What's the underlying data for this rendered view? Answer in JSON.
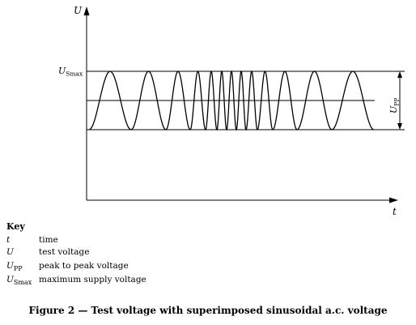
{
  "axes": {
    "y_label": "U",
    "x_label": "t",
    "level_label_main": "U",
    "level_label_sub": "Smax",
    "dimension_label_main": "U",
    "dimension_label_sub": "PP"
  },
  "key": {
    "title": "Key",
    "items": [
      {
        "symbol": "t",
        "sub": "",
        "desc": "time"
      },
      {
        "symbol": "U",
        "sub": "",
        "desc": "test voltage"
      },
      {
        "symbol": "U",
        "sub": "PP",
        "desc": "peak to peak voltage"
      },
      {
        "symbol": "U",
        "sub": "Smax",
        "desc": "maximum supply voltage"
      }
    ]
  },
  "caption": "Figure 2 — Test voltage with superimposed sinusoidal a.c. voltage"
}
